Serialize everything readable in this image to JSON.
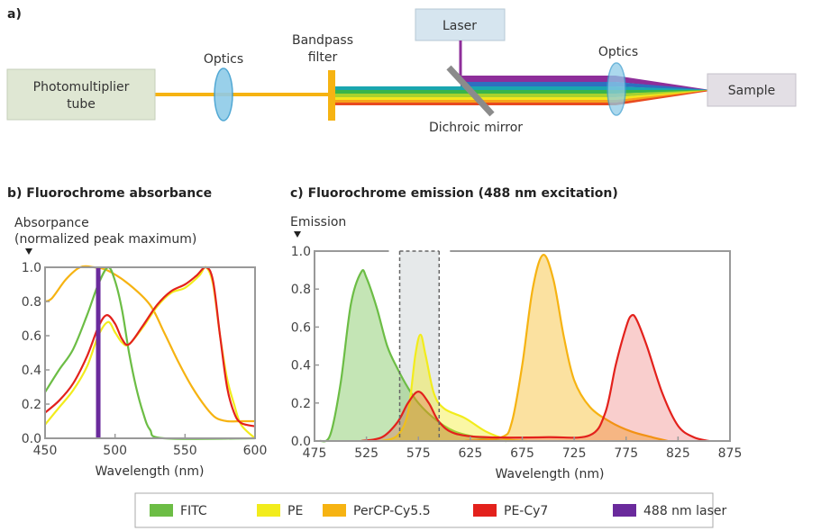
{
  "diagram": {
    "panel_label": "a)",
    "pmt_label_1": "Photomultiplier",
    "pmt_label_2": "tube",
    "optics_left": "Optics",
    "bandpass_1": "Bandpass",
    "bandpass_2": "filter",
    "laser": "Laser",
    "dichroic": "Dichroic mirror",
    "optics_right": "Optics",
    "sample": "Sample"
  },
  "colors": {
    "FITC": "#6cbd45",
    "PE": "#f2ec1c",
    "PerCP-Cy5.5": "#f6b312",
    "PE-Cy7": "#e3211c",
    "488 nm laser": "#6a2a9c"
  },
  "legend": {
    "items": [
      "FITC",
      "PE",
      "PerCP-Cy5.5",
      "PE-Cy7",
      "488 nm laser"
    ],
    "placement": "bottom-center"
  },
  "chart_data": [
    {
      "type": "line",
      "title": "b) Fluorochrome absorbance",
      "ylabel_1": "Absorpance",
      "ylabel_2": "(normalized peak maximum)",
      "xlabel": "Wavelength (nm)",
      "xlim": [
        450,
        600
      ],
      "ylim": [
        0,
        1
      ],
      "xticks": [
        "450",
        "500",
        "550",
        "600"
      ],
      "yticks": [
        "0.0",
        "0.2",
        "0.4",
        "0.6",
        "0.8",
        "1.0"
      ],
      "grid": false,
      "vline": {
        "name": "488 nm laser",
        "x": 488
      },
      "series": [
        {
          "name": "PerCP-Cy5.5",
          "x": [
            450,
            455,
            465,
            475,
            485,
            495,
            510,
            525,
            535,
            545,
            555,
            565,
            572,
            580,
            590,
            600
          ],
          "y": [
            0.8,
            0.82,
            0.93,
            1.0,
            1.0,
            0.98,
            0.9,
            0.78,
            0.62,
            0.45,
            0.3,
            0.18,
            0.12,
            0.1,
            0.1,
            0.1
          ]
        },
        {
          "name": "FITC",
          "x": [
            450,
            460,
            470,
            480,
            488,
            495,
            500,
            505,
            510,
            515,
            520,
            525,
            535,
            600
          ],
          "y": [
            0.27,
            0.4,
            0.52,
            0.72,
            0.9,
            1.0,
            0.92,
            0.75,
            0.5,
            0.3,
            0.15,
            0.05,
            0,
            0
          ]
        },
        {
          "name": "PE",
          "x": [
            450,
            460,
            470,
            480,
            488,
            495,
            500,
            505,
            510,
            520,
            530,
            540,
            550,
            560,
            565,
            570,
            575,
            580,
            585,
            590,
            600
          ],
          "y": [
            0.08,
            0.18,
            0.28,
            0.42,
            0.6,
            0.68,
            0.62,
            0.56,
            0.55,
            0.65,
            0.77,
            0.85,
            0.88,
            0.95,
            1.0,
            0.9,
            0.6,
            0.35,
            0.2,
            0.08,
            0
          ]
        },
        {
          "name": "PE-Cy7",
          "x": [
            450,
            460,
            470,
            480,
            488,
            494,
            500,
            505,
            510,
            520,
            530,
            540,
            550,
            558,
            565,
            570,
            575,
            580,
            585,
            590,
            600
          ],
          "y": [
            0.15,
            0.22,
            0.32,
            0.48,
            0.65,
            0.72,
            0.67,
            0.58,
            0.55,
            0.66,
            0.78,
            0.86,
            0.9,
            0.95,
            1.0,
            0.92,
            0.6,
            0.3,
            0.15,
            0.09,
            0.07
          ]
        }
      ]
    },
    {
      "type": "area",
      "title": "c) Fluorochrome emission (488 nm excitation)",
      "ylabel": "Emission",
      "xlabel": "Wavelength (nm)",
      "xlim": [
        475,
        875
      ],
      "ylim": [
        0,
        1
      ],
      "xticks": [
        "475",
        "525",
        "575",
        "625",
        "675",
        "725",
        "775",
        "825",
        "875"
      ],
      "yticks": [
        "0.0",
        "0.2",
        "0.4",
        "0.6",
        "0.8",
        "1.0"
      ],
      "grid": false,
      "highlight_band": [
        557,
        595
      ],
      "series": [
        {
          "name": "FITC",
          "x": [
            480,
            490,
            500,
            510,
            520,
            525,
            535,
            545,
            555,
            565,
            575,
            590,
            610,
            640,
            660
          ],
          "y": [
            0,
            0.03,
            0.3,
            0.72,
            0.89,
            0.86,
            0.7,
            0.5,
            0.38,
            0.28,
            0.2,
            0.12,
            0.05,
            0.01,
            0
          ]
        },
        {
          "name": "PE",
          "x": [
            540,
            555,
            565,
            572,
            577,
            582,
            590,
            600,
            620,
            640,
            660,
            680
          ],
          "y": [
            0,
            0.03,
            0.15,
            0.45,
            0.56,
            0.45,
            0.25,
            0.17,
            0.12,
            0.05,
            0.01,
            0
          ]
        },
        {
          "name": "PerCP-Cy5.5",
          "x": [
            620,
            655,
            665,
            675,
            685,
            695,
            705,
            715,
            725,
            740,
            760,
            780,
            800,
            815
          ],
          "y": [
            0,
            0.02,
            0.1,
            0.4,
            0.8,
            0.98,
            0.85,
            0.55,
            0.32,
            0.18,
            0.1,
            0.05,
            0.02,
            0
          ]
        },
        {
          "name": "PE-Cy7",
          "x": [
            520,
            540,
            555,
            565,
            575,
            585,
            595,
            610,
            640,
            700,
            740,
            755,
            765,
            775,
            780,
            785,
            795,
            810,
            825,
            840,
            855
          ],
          "y": [
            0,
            0.02,
            0.1,
            0.2,
            0.26,
            0.2,
            0.1,
            0.04,
            0.02,
            0.02,
            0.03,
            0.15,
            0.4,
            0.6,
            0.66,
            0.64,
            0.5,
            0.25,
            0.08,
            0.02,
            0
          ]
        }
      ]
    }
  ]
}
